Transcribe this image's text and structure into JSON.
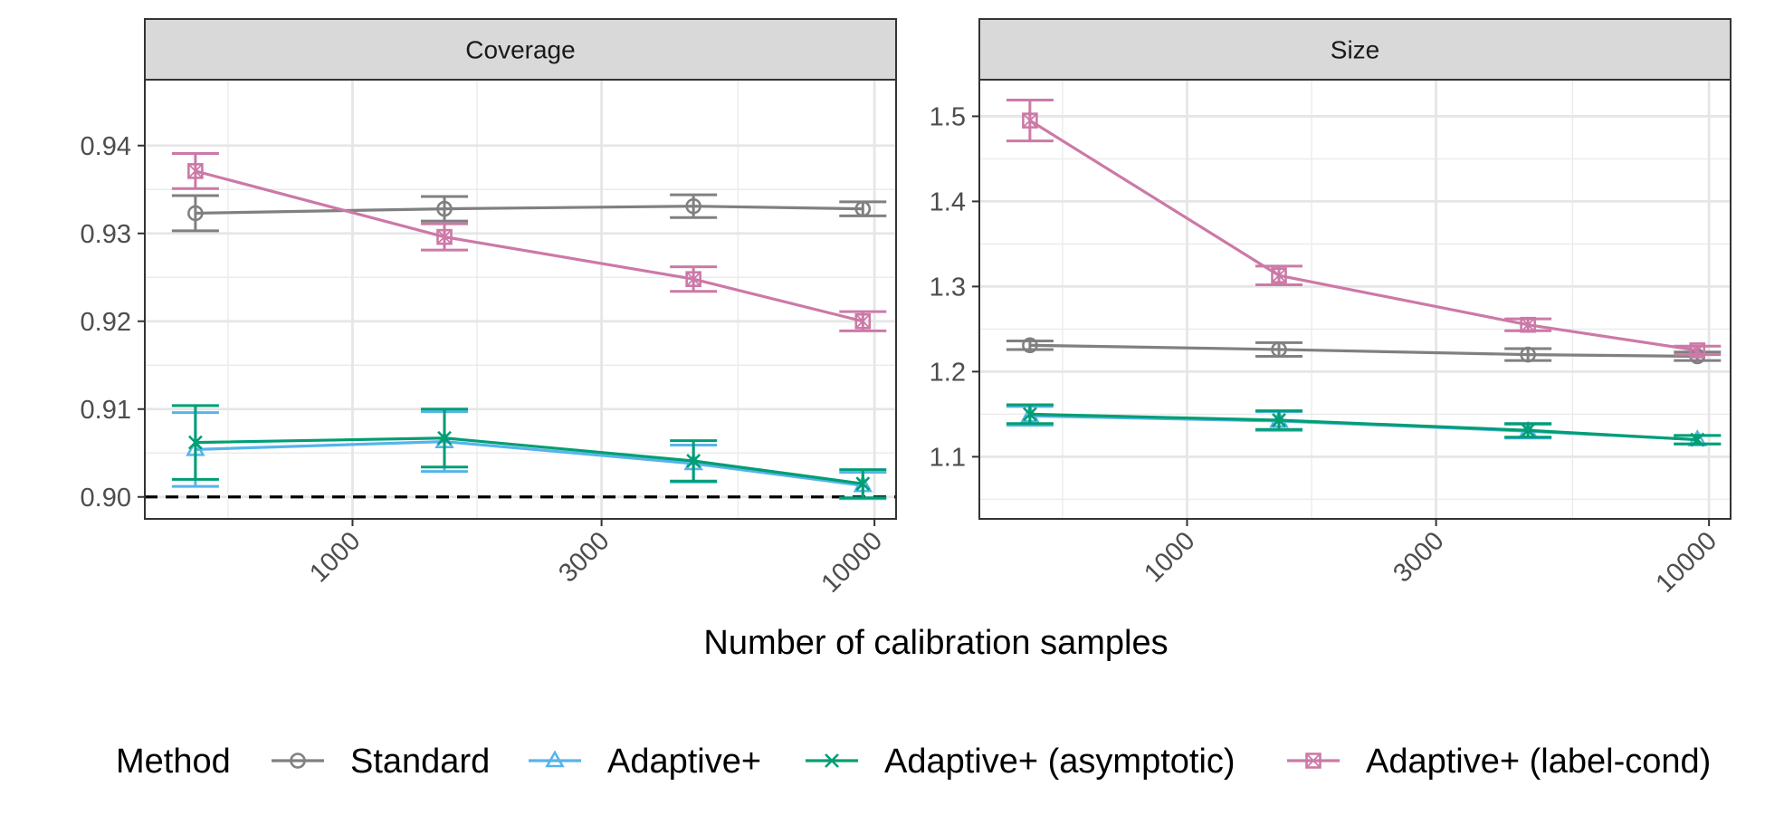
{
  "chart_data": {
    "type": "line",
    "x_scale": "log10",
    "xlabel": "Number of calibration samples",
    "x_ticks": [
      1000,
      3000,
      10000
    ],
    "x_tick_labels": [
      "1000",
      "3000",
      "10000"
    ],
    "xlim": [
      400,
      11000
    ],
    "grid": true,
    "legend": {
      "title": "Method",
      "position": "bottom",
      "entries": [
        "Standard",
        "Adaptive+",
        "Adaptive+ (asymptotic)",
        "Adaptive+ (label-cond)"
      ]
    },
    "colors": {
      "Standard": "#808080",
      "Adaptive+": "#56B4E9",
      "Adaptive+ (asymptotic)": "#009E73",
      "Adaptive+ (label-cond)": "#CC79A7"
    },
    "markers": {
      "Standard": "circle-open",
      "Adaptive+": "triangle-open",
      "Adaptive+ (asymptotic)": "x",
      "Adaptive+ (label-cond)": "square-x"
    },
    "panels": [
      {
        "title": "Coverage",
        "ylim": [
          0.8975,
          0.9475
        ],
        "y_ticks": [
          0.9,
          0.91,
          0.92,
          0.93,
          0.94
        ],
        "y_tick_labels": [
          "0.90",
          "0.91",
          "0.92",
          "0.93",
          "0.94"
        ],
        "reference_line": {
          "y": 0.9,
          "style": "dashed"
        },
        "series": [
          {
            "name": "Standard",
            "x": [
              500,
              1500,
              4500,
              9500
            ],
            "y": [
              0.9323,
              0.9328,
              0.9331,
              0.9328
            ],
            "err": [
              0.002,
              0.0014,
              0.0013,
              0.0008
            ]
          },
          {
            "name": "Adaptive+",
            "x": [
              500,
              1500,
              4500,
              9500
            ],
            "y": [
              0.9054,
              0.9063,
              0.9038,
              0.9013
            ],
            "err": [
              0.0042,
              0.0034,
              0.0021,
              0.0015
            ]
          },
          {
            "name": "Adaptive+ (asymptotic)",
            "x": [
              500,
              1500,
              4500,
              9500
            ],
            "y": [
              0.9062,
              0.9067,
              0.9041,
              0.9015
            ],
            "err": [
              0.0042,
              0.0033,
              0.0023,
              0.0016
            ]
          },
          {
            "name": "Adaptive+ (label-cond)",
            "x": [
              500,
              1500,
              4500,
              9500
            ],
            "y": [
              0.9371,
              0.9296,
              0.9248,
              0.92
            ],
            "err": [
              0.002,
              0.0015,
              0.0014,
              0.0011
            ]
          }
        ]
      },
      {
        "title": "Size",
        "ylim": [
          1.027,
          1.543
        ],
        "y_ticks": [
          1.1,
          1.2,
          1.3,
          1.4,
          1.5
        ],
        "y_tick_labels": [
          "1.1",
          "1.2",
          "1.3",
          "1.4",
          "1.5"
        ],
        "series": [
          {
            "name": "Standard",
            "x": [
              500,
              1500,
              4500,
              9500
            ],
            "y": [
              1.231,
              1.226,
              1.22,
              1.218
            ],
            "err": [
              0.005,
              0.008,
              0.007,
              0.005
            ]
          },
          {
            "name": "Adaptive+",
            "x": [
              500,
              1500,
              4500,
              9500
            ],
            "y": [
              1.148,
              1.142,
              1.13,
              1.12
            ],
            "err": [
              0.011,
              0.011,
              0.008,
              0.005
            ]
          },
          {
            "name": "Adaptive+ (asymptotic)",
            "x": [
              500,
              1500,
              4500,
              9500
            ],
            "y": [
              1.15,
              1.143,
              1.131,
              1.12
            ],
            "err": [
              0.011,
              0.011,
              0.008,
              0.005
            ]
          },
          {
            "name": "Adaptive+ (label-cond)",
            "x": [
              500,
              1500,
              4500,
              9500
            ],
            "y": [
              1.495,
              1.313,
              1.255,
              1.225
            ],
            "err": [
              0.024,
              0.011,
              0.007,
              0.005
            ]
          }
        ]
      }
    ]
  }
}
